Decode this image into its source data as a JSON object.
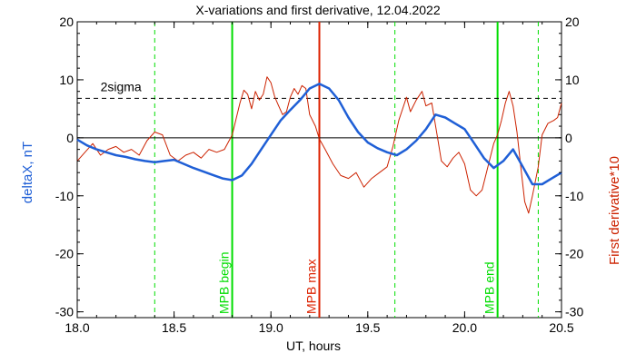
{
  "chart_data": {
    "type": "line",
    "title": "X-variations and first derivative, 12.04.2022",
    "xlabel": "UT, hours",
    "ylabel_left": "deltaX, nT",
    "ylabel_right": "First derivative*10",
    "xlim": [
      18.0,
      20.5
    ],
    "ylim": [
      -31,
      20
    ],
    "x_ticks": [
      18.0,
      18.5,
      19.0,
      19.5,
      20.0,
      20.5
    ],
    "x_tick_labels": [
      "18.0",
      "18.5",
      "19.0",
      "19.5",
      "20.0",
      "20.5"
    ],
    "y_ticks": [
      -30,
      -20,
      -10,
      0,
      10,
      20
    ],
    "y_tick_labels": [
      "-30",
      "-20",
      "-10",
      "0",
      "10",
      "20"
    ],
    "grid": false,
    "colors": {
      "deltaX": "#1f5fd6",
      "derivative": "#cc2200",
      "mpb_begin_end": "#00dd00",
      "mpb_max": "#dd2200",
      "axes": "#000000"
    },
    "threshold": {
      "label": "2sigma",
      "value": 6.8
    },
    "vertical_markers": [
      {
        "x": 18.8,
        "label": "MPB begin",
        "style": "solid",
        "color": "#00dd00"
      },
      {
        "x": 19.25,
        "label": "MPB max",
        "style": "solid",
        "color": "#dd2200"
      },
      {
        "x": 20.17,
        "label": "MPB end",
        "style": "solid",
        "color": "#00dd00"
      },
      {
        "x": 18.4,
        "label": "",
        "style": "dashed",
        "color": "#00dd00"
      },
      {
        "x": 19.64,
        "label": "",
        "style": "dashed",
        "color": "#00dd00"
      },
      {
        "x": 20.38,
        "label": "",
        "style": "dashed",
        "color": "#00dd00"
      }
    ],
    "series": [
      {
        "key": "deltaX",
        "values": [
          [
            18.0,
            -0.3
          ],
          [
            18.05,
            -1.3
          ],
          [
            18.1,
            -2.0
          ],
          [
            18.15,
            -2.5
          ],
          [
            18.2,
            -3.0
          ],
          [
            18.25,
            -3.3
          ],
          [
            18.3,
            -3.7
          ],
          [
            18.35,
            -4.0
          ],
          [
            18.4,
            -4.2
          ],
          [
            18.45,
            -4.0
          ],
          [
            18.5,
            -3.8
          ],
          [
            18.55,
            -4.5
          ],
          [
            18.6,
            -5.2
          ],
          [
            18.65,
            -5.8
          ],
          [
            18.7,
            -6.4
          ],
          [
            18.75,
            -7.0
          ],
          [
            18.8,
            -7.3
          ],
          [
            18.85,
            -6.5
          ],
          [
            18.9,
            -4.5
          ],
          [
            18.95,
            -2.0
          ],
          [
            19.0,
            0.5
          ],
          [
            19.05,
            3.0
          ],
          [
            19.1,
            4.8
          ],
          [
            19.15,
            6.5
          ],
          [
            19.2,
            8.5
          ],
          [
            19.25,
            9.3
          ],
          [
            19.3,
            8.5
          ],
          [
            19.35,
            6.5
          ],
          [
            19.4,
            3.5
          ],
          [
            19.45,
            1.0
          ],
          [
            19.5,
            -0.8
          ],
          [
            19.55,
            -1.8
          ],
          [
            19.6,
            -2.5
          ],
          [
            19.65,
            -3.0
          ],
          [
            19.7,
            -2.0
          ],
          [
            19.75,
            -0.5
          ],
          [
            19.8,
            1.5
          ],
          [
            19.85,
            4.0
          ],
          [
            19.9,
            3.5
          ],
          [
            19.95,
            2.5
          ],
          [
            20.0,
            1.5
          ],
          [
            20.05,
            -1.0
          ],
          [
            20.1,
            -3.5
          ],
          [
            20.15,
            -5.2
          ],
          [
            20.2,
            -4.0
          ],
          [
            20.25,
            -2.0
          ],
          [
            20.3,
            -5.0
          ],
          [
            20.35,
            -8.0
          ],
          [
            20.4,
            -8.0
          ],
          [
            20.45,
            -7.0
          ],
          [
            20.5,
            -6.0
          ]
        ]
      },
      {
        "key": "derivative",
        "values": [
          [
            18.0,
            -4.0
          ],
          [
            18.04,
            -2.5
          ],
          [
            18.08,
            -1.0
          ],
          [
            18.12,
            -3.0
          ],
          [
            18.16,
            -2.0
          ],
          [
            18.2,
            -1.5
          ],
          [
            18.24,
            -2.5
          ],
          [
            18.28,
            -2.0
          ],
          [
            18.32,
            -3.0
          ],
          [
            18.36,
            -0.5
          ],
          [
            18.4,
            1.0
          ],
          [
            18.44,
            0.5
          ],
          [
            18.48,
            -3.0
          ],
          [
            18.52,
            -4.0
          ],
          [
            18.56,
            -3.0
          ],
          [
            18.6,
            -2.5
          ],
          [
            18.64,
            -3.5
          ],
          [
            18.68,
            -2.0
          ],
          [
            18.72,
            -2.5
          ],
          [
            18.76,
            -2.0
          ],
          [
            18.8,
            0.5
          ],
          [
            18.84,
            6.0
          ],
          [
            18.86,
            8.2
          ],
          [
            18.88,
            7.5
          ],
          [
            18.9,
            5.0
          ],
          [
            18.92,
            8.0
          ],
          [
            18.94,
            6.5
          ],
          [
            18.96,
            7.5
          ],
          [
            18.98,
            10.5
          ],
          [
            19.0,
            9.5
          ],
          [
            19.02,
            7.0
          ],
          [
            19.04,
            5.5
          ],
          [
            19.06,
            4.0
          ],
          [
            19.08,
            4.5
          ],
          [
            19.1,
            7.0
          ],
          [
            19.12,
            8.5
          ],
          [
            19.14,
            7.5
          ],
          [
            19.16,
            9.0
          ],
          [
            19.18,
            8.5
          ],
          [
            19.2,
            4.0
          ],
          [
            19.23,
            2.0
          ],
          [
            19.25,
            -0.2
          ],
          [
            19.28,
            -2.0
          ],
          [
            19.32,
            -4.5
          ],
          [
            19.36,
            -6.5
          ],
          [
            19.4,
            -7.0
          ],
          [
            19.44,
            -6.0
          ],
          [
            19.48,
            -8.5
          ],
          [
            19.52,
            -7.0
          ],
          [
            19.56,
            -6.0
          ],
          [
            19.6,
            -5.0
          ],
          [
            19.63,
            -1.5
          ],
          [
            19.66,
            3.0
          ],
          [
            19.7,
            7.0
          ],
          [
            19.72,
            4.5
          ],
          [
            19.75,
            6.5
          ],
          [
            19.78,
            8.0
          ],
          [
            19.8,
            5.5
          ],
          [
            19.83,
            6.0
          ],
          [
            19.86,
            0.0
          ],
          [
            19.88,
            -4.0
          ],
          [
            19.91,
            -5.0
          ],
          [
            19.94,
            -3.5
          ],
          [
            19.97,
            -2.5
          ],
          [
            20.0,
            -4.5
          ],
          [
            20.03,
            -9.0
          ],
          [
            20.06,
            -10.0
          ],
          [
            20.09,
            -9.0
          ],
          [
            20.12,
            -5.0
          ],
          [
            20.15,
            -1.0
          ],
          [
            20.17,
            0.5
          ],
          [
            20.19,
            3.0
          ],
          [
            20.21,
            6.0
          ],
          [
            20.23,
            8.0
          ],
          [
            20.25,
            5.5
          ],
          [
            20.27,
            1.0
          ],
          [
            20.29,
            -5.0
          ],
          [
            20.31,
            -11.0
          ],
          [
            20.33,
            -13.0
          ],
          [
            20.35,
            -10.0
          ],
          [
            20.38,
            -5.0
          ],
          [
            20.4,
            0.5
          ],
          [
            20.43,
            2.5
          ],
          [
            20.46,
            3.0
          ],
          [
            20.48,
            3.5
          ],
          [
            20.5,
            6.0
          ]
        ]
      }
    ]
  }
}
